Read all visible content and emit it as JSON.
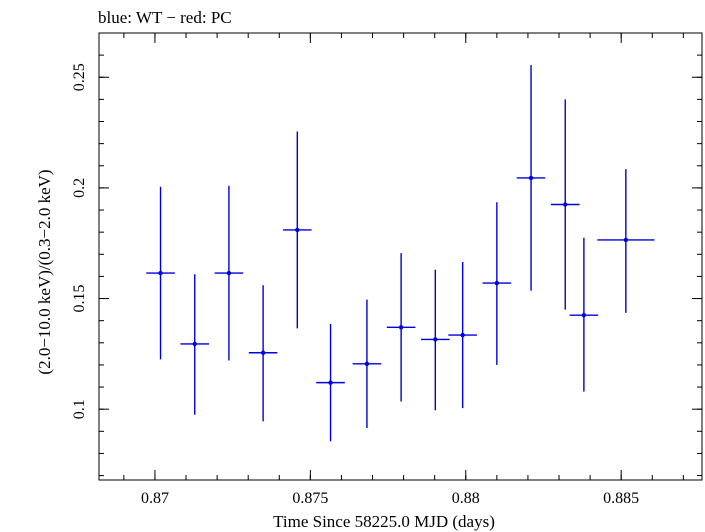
{
  "chart_data": {
    "type": "scatter",
    "title": "blue: WT − red: PC",
    "xlabel": "Time Since 58225.0 MJD (days)",
    "ylabel": "(2.0−10.0 keV)/(0.3−2.0 keV)",
    "xlim": [
      0.8682,
      0.8876
    ],
    "ylim": [
      0.068,
      0.27
    ],
    "xticks": [
      {
        "value": 0.87,
        "label": "0.87"
      },
      {
        "value": 0.875,
        "label": "0.875"
      },
      {
        "value": 0.88,
        "label": "0.88"
      },
      {
        "value": 0.885,
        "label": "0.885"
      }
    ],
    "yticks": [
      {
        "value": 0.1,
        "label": "0.1"
      },
      {
        "value": 0.15,
        "label": "0.15"
      },
      {
        "value": 0.2,
        "label": "0.2"
      },
      {
        "value": 0.25,
        "label": "0.25"
      }
    ],
    "grid": false,
    "color": "#0000dd",
    "series": [
      {
        "points": [
          {
            "x": 0.87018,
            "xerr": 0.00046,
            "y": 0.1615,
            "ylo": 0.1225,
            "yhi": 0.2005
          },
          {
            "x": 0.87128,
            "xerr": 0.00046,
            "y": 0.1295,
            "ylo": 0.0975,
            "yhi": 0.161
          },
          {
            "x": 0.87238,
            "xerr": 0.00046,
            "y": 0.1615,
            "ylo": 0.122,
            "yhi": 0.201
          },
          {
            "x": 0.87348,
            "xerr": 0.00046,
            "y": 0.1255,
            "ylo": 0.0945,
            "yhi": 0.156
          },
          {
            "x": 0.87458,
            "xerr": 0.00046,
            "y": 0.181,
            "ylo": 0.1365,
            "yhi": 0.2255
          },
          {
            "x": 0.87565,
            "xerr": 0.00046,
            "y": 0.112,
            "ylo": 0.0855,
            "yhi": 0.1385
          },
          {
            "x": 0.87682,
            "xerr": 0.00046,
            "y": 0.1205,
            "ylo": 0.0915,
            "yhi": 0.1495
          },
          {
            "x": 0.87792,
            "xerr": 0.00046,
            "y": 0.137,
            "ylo": 0.1035,
            "yhi": 0.1705
          },
          {
            "x": 0.87902,
            "xerr": 0.00046,
            "y": 0.1315,
            "ylo": 0.0995,
            "yhi": 0.163
          },
          {
            "x": 0.8799,
            "xerr": 0.00046,
            "y": 0.1335,
            "ylo": 0.1005,
            "yhi": 0.1665
          },
          {
            "x": 0.881,
            "xerr": 0.00046,
            "y": 0.157,
            "ylo": 0.12,
            "yhi": 0.1935
          },
          {
            "x": 0.8821,
            "xerr": 0.00046,
            "y": 0.2045,
            "ylo": 0.1535,
            "yhi": 0.2555
          },
          {
            "x": 0.8832,
            "xerr": 0.00046,
            "y": 0.1925,
            "ylo": 0.145,
            "yhi": 0.24
          },
          {
            "x": 0.8838,
            "xerr": 0.00046,
            "y": 0.1425,
            "ylo": 0.108,
            "yhi": 0.1775
          },
          {
            "x": 0.88515,
            "xerr": 0.00092,
            "y": 0.1765,
            "ylo": 0.1435,
            "yhi": 0.2085
          }
        ]
      }
    ]
  }
}
